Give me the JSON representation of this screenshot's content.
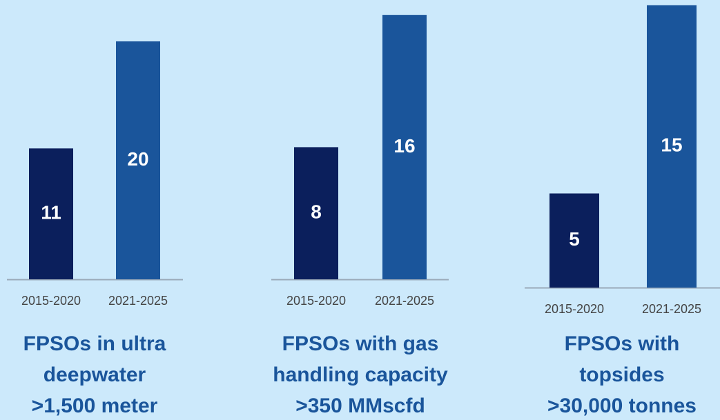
{
  "chart_data": [
    {
      "type": "bar",
      "title": [
        "FPSOs in ultra",
        "deepwater",
        ">1,500 meter"
      ],
      "categories": [
        "2015-2020",
        "2021-2025"
      ],
      "values": [
        11,
        20
      ],
      "colors": [
        "#0b1f5c",
        "#1a559b"
      ]
    },
    {
      "type": "bar",
      "title": [
        "FPSOs with gas",
        "handling capacity",
        ">350 MMscfd"
      ],
      "categories": [
        "2015-2020",
        "2021-2025"
      ],
      "values": [
        8,
        16
      ],
      "colors": [
        "#0b1f5c",
        "#1a559b"
      ]
    },
    {
      "type": "bar",
      "title": [
        "FPSOs with",
        "topsides",
        ">30,000 tonnes"
      ],
      "categories": [
        "2015-2020",
        "2021-2025"
      ],
      "values": [
        5,
        15
      ],
      "colors": [
        "#0b1f5c",
        "#1a559b"
      ]
    }
  ]
}
